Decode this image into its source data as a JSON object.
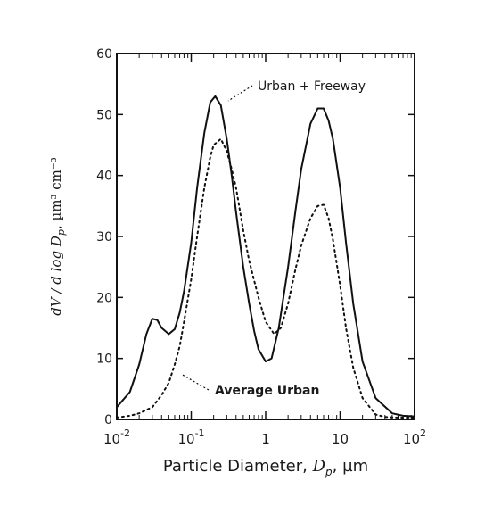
{
  "chart_data": {
    "type": "line",
    "xscale": "log",
    "xlim": [
      0.01,
      100
    ],
    "ylim": [
      0,
      60
    ],
    "yticks": [
      0,
      10,
      20,
      30,
      40,
      50,
      60
    ],
    "ytick_labels": [
      "0",
      "10",
      "20",
      "30",
      "40",
      "50",
      "60"
    ],
    "xticks": [
      0.01,
      0.1,
      1,
      10,
      100
    ],
    "xtick_labels": [
      {
        "base": "10",
        "exp": "-2"
      },
      {
        "base": "10",
        "exp": "-1"
      },
      {
        "base": "1",
        "exp": ""
      },
      {
        "base": "10",
        "exp": ""
      },
      {
        "base": "10",
        "exp": "2"
      }
    ],
    "xlabel": {
      "text": "Particle  Diameter,",
      "var": "D",
      "sub": "p",
      "unit": ", µm"
    },
    "ylabel": {
      "text": "dV / d log D",
      "sub": "p",
      "unit": ", µm³ cm⁻³"
    },
    "series": [
      {
        "name": "Urban + Freeway",
        "style": "solid",
        "color": "#111111",
        "x": [
          0.01,
          0.015,
          0.02,
          0.025,
          0.03,
          0.035,
          0.04,
          0.05,
          0.06,
          0.07,
          0.08,
          0.1,
          0.12,
          0.15,
          0.18,
          0.21,
          0.25,
          0.3,
          0.35,
          0.4,
          0.5,
          0.6,
          0.7,
          0.8,
          1.0,
          1.2,
          1.5,
          2.0,
          2.5,
          3.0,
          4.0,
          5.0,
          6.0,
          7.0,
          8.0,
          10,
          12,
          15,
          20,
          30,
          50,
          70,
          100
        ],
        "y": [
          2,
          4.5,
          9,
          14,
          16.5,
          16.3,
          15,
          14,
          14.8,
          17.5,
          21,
          29,
          38,
          47,
          52,
          53,
          51.5,
          46,
          40,
          34,
          25,
          19,
          14.5,
          11.5,
          9.5,
          10,
          15,
          25,
          34,
          41,
          48.5,
          51,
          51,
          49,
          46,
          38,
          29,
          19,
          9.5,
          3.5,
          1.0,
          0.6,
          0.5
        ]
      },
      {
        "name": "Average Urban",
        "style": "dotted",
        "color": "#111111",
        "x": [
          0.01,
          0.015,
          0.02,
          0.03,
          0.04,
          0.05,
          0.06,
          0.07,
          0.08,
          0.1,
          0.12,
          0.15,
          0.18,
          0.2,
          0.25,
          0.3,
          0.35,
          0.4,
          0.5,
          0.6,
          0.8,
          1.0,
          1.3,
          1.6,
          2.0,
          2.5,
          3.0,
          4.0,
          5.0,
          6.0,
          7.0,
          8.0,
          10,
          12,
          15,
          20,
          30,
          40,
          60,
          80,
          100
        ],
        "y": [
          0.3,
          0.6,
          1.0,
          2.0,
          4.0,
          6.0,
          9.0,
          12.0,
          16.0,
          23.0,
          30.0,
          38.0,
          43.0,
          45.0,
          46.0,
          44.0,
          41.0,
          38.0,
          31.0,
          26.0,
          20.0,
          16.0,
          14.0,
          15.0,
          19.0,
          24.5,
          28.5,
          33.0,
          35.0,
          35.2,
          33.0,
          29.5,
          22.0,
          15.0,
          8.5,
          3.5,
          0.8,
          0.4,
          0.3,
          0.3,
          0.3
        ]
      }
    ],
    "annotations": [
      {
        "text": "Urban + Freeway",
        "series": "Urban + Freeway"
      },
      {
        "text": "Average Urban",
        "series": "Average Urban"
      }
    ]
  }
}
